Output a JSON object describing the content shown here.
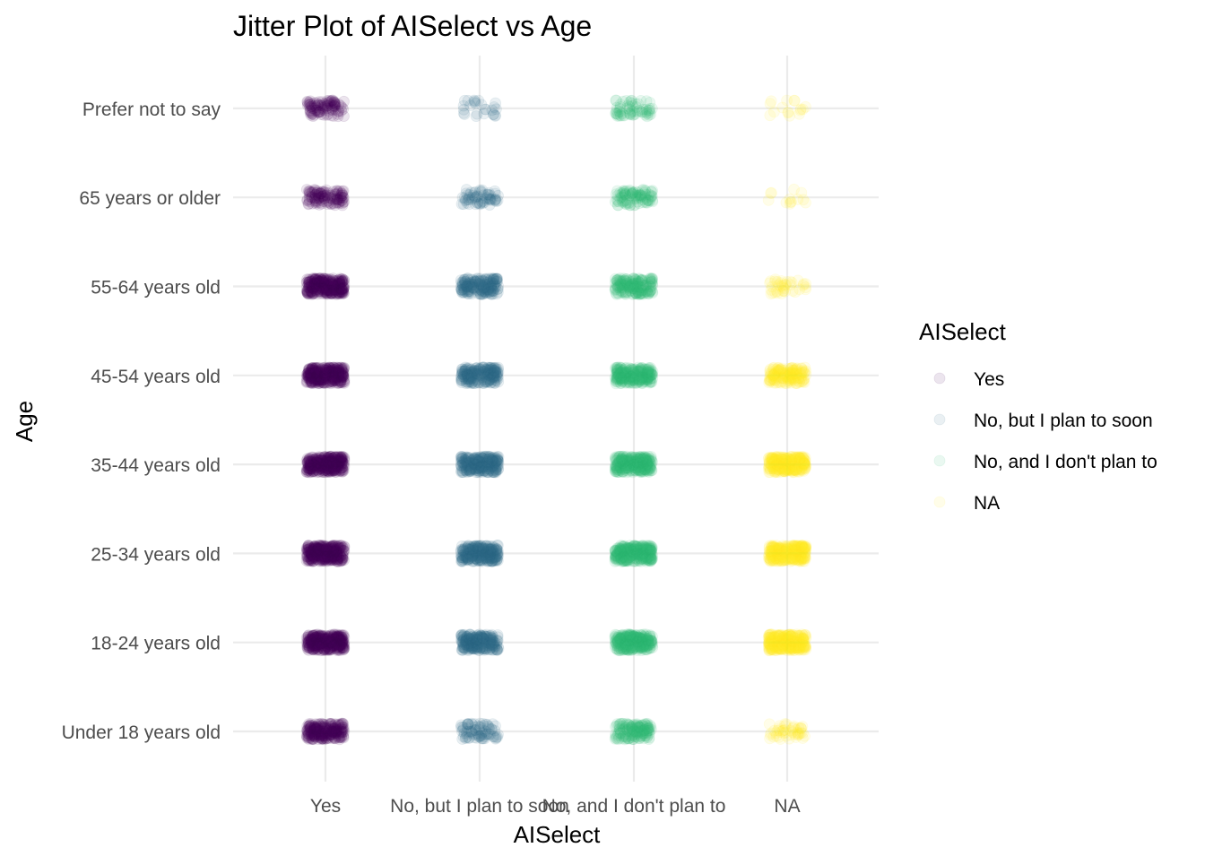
{
  "chart_data": {
    "type": "scatter",
    "subtype": "jitter",
    "title": "Jitter Plot of AISelect vs Age",
    "xlabel": "AISelect",
    "ylabel": "Age",
    "x_categories": [
      "Yes",
      "No, but I plan to soon",
      "No, and I don't plan to",
      "NA"
    ],
    "x_tick_labels": [
      "Yes",
      "No, but I plan to soon",
      "No, and I don't plan to",
      "NA"
    ],
    "y_categories": [
      "Under 18 years old",
      "18-24 years old",
      "25-34 years old",
      "35-44 years old",
      "45-54 years old",
      "55-64 years old",
      "65 years or older",
      "Prefer not to say"
    ],
    "legend": {
      "title": "AISelect",
      "position": "right",
      "entries": [
        "Yes",
        "No, but I plan to soon",
        "No, and I don't plan to",
        "NA"
      ]
    },
    "colors": {
      "Yes": "#440154",
      "No, but I plan to soon": "#31688e",
      "No, and I don't plan to": "#35b779",
      "NA": "#fde725"
    },
    "point_alpha": 0.1,
    "grid": true,
    "relative_density": {
      "Yes": [
        0.7,
        1.0,
        1.0,
        1.0,
        1.0,
        0.9,
        0.35,
        0.3
      ],
      "No, but I plan to soon": [
        0.25,
        0.8,
        0.9,
        0.85,
        0.7,
        0.6,
        0.2,
        0.08
      ],
      "No, and I don't plan to": [
        0.45,
        0.9,
        0.95,
        0.9,
        0.8,
        0.55,
        0.3,
        0.2
      ],
      "NA": [
        0.15,
        1.0,
        1.0,
        0.95,
        0.5,
        0.12,
        0.04,
        0.05
      ]
    }
  }
}
